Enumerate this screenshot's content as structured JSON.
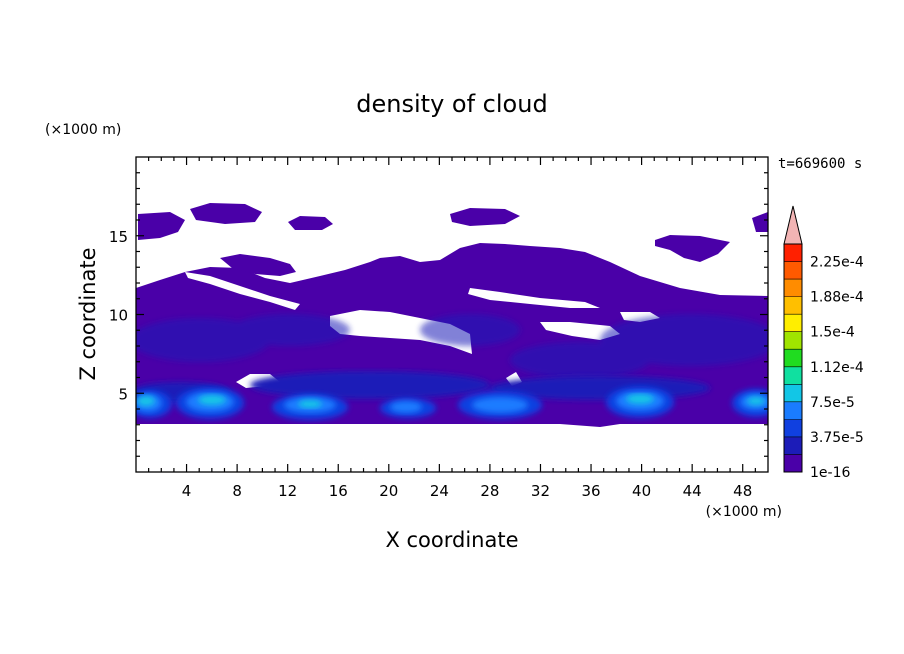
{
  "chart_data": {
    "type": "heatmap",
    "title": "density of cloud",
    "xlabel": "X coordinate",
    "ylabel": "Z coordinate",
    "x_unit": "(×1000 m)",
    "y_unit": "(×1000 m)",
    "time_label": "t=669600 s",
    "xlim": [
      0,
      50
    ],
    "ylim": [
      0,
      20
    ],
    "x_ticks": [
      "4",
      "8",
      "12",
      "16",
      "20",
      "24",
      "28",
      "32",
      "36",
      "40",
      "44",
      "48"
    ],
    "y_ticks": [
      "5",
      "10",
      "15"
    ],
    "colorbar": {
      "labels": [
        "1e-16",
        "3.75e-5",
        "7.5e-5",
        "1.12e-4",
        "1.5e-4",
        "1.88e-4",
        "2.25e-4"
      ],
      "colors": [
        "#4a00a8",
        "#1c1cb8",
        "#1040e0",
        "#1a7cff",
        "#12c6e6",
        "#10e0a0",
        "#20dc20",
        "#a0e400",
        "#ffee00",
        "#ffbf00",
        "#ff8c00",
        "#ff5a00",
        "#ff2000",
        "#f2b4b4"
      ],
      "extend": "max"
    },
    "regions": {
      "base_cloud": {
        "x_range": [
          0,
          50
        ],
        "z_range": [
          3.3,
          11.2
        ],
        "level": "1e-16"
      },
      "upper_patches": [
        {
          "x_center": 2,
          "z_center": 15.8,
          "level": "1e-16"
        },
        {
          "x_center": 7.5,
          "z_center": 16.6,
          "level": "1e-16"
        },
        {
          "x_center": 14.5,
          "z_center": 15.6,
          "level": "1e-16"
        },
        {
          "x_center": 27.5,
          "z_center": 16.3,
          "level": "1e-16"
        },
        {
          "x_center": 44,
          "z_center": 14.4,
          "level": "1e-16"
        },
        {
          "x_center": 49.5,
          "z_center": 15.6,
          "level": "1e-16"
        }
      ],
      "core_maxima": [
        {
          "x": 1,
          "z": 4.7,
          "level": "1.12e-4"
        },
        {
          "x": 6,
          "z": 4.8,
          "level": "1.12e-4"
        },
        {
          "x": 14,
          "z": 4.5,
          "level": "1.12e-4"
        },
        {
          "x": 28,
          "z": 4.5,
          "level": "1.12e-4"
        },
        {
          "x": 39,
          "z": 4.8,
          "level": "1.12e-4"
        },
        {
          "x": 49,
          "z": 4.8,
          "level": "1.12e-4"
        }
      ]
    }
  }
}
